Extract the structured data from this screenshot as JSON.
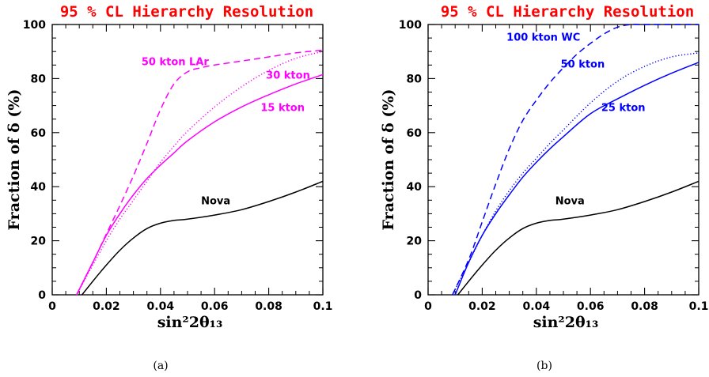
{
  "chart_data": [
    {
      "type": "line",
      "panel": "(a)",
      "title": "95 % CL Hierarchy Resolution",
      "title_color": "#ff0000",
      "xlabel": "sin²2θ₁₃",
      "ylabel": "Fraction of δ (%)",
      "xlim": [
        0,
        0.1
      ],
      "ylim": [
        0,
        100
      ],
      "xticks": [
        "0",
        "0.02",
        "0.04",
        "0.06",
        "0.08",
        "0.1"
      ],
      "yticks": [
        "0",
        "20",
        "40",
        "60",
        "80",
        "100"
      ],
      "series": [
        {
          "name": "Nova",
          "color": "#000000",
          "dash": "solid",
          "x": [
            0.011,
            0.015,
            0.02,
            0.025,
            0.03,
            0.035,
            0.04,
            0.045,
            0.05,
            0.06,
            0.07,
            0.08,
            0.09,
            0.1
          ],
          "y": [
            0,
            5,
            11,
            16.5,
            21,
            24.5,
            26.5,
            27.5,
            28,
            29.5,
            31.5,
            34.5,
            38,
            42
          ]
        },
        {
          "name": "15 kton",
          "color": "#ff00ff",
          "dash": "solid",
          "x": [
            0.009,
            0.015,
            0.02,
            0.025,
            0.03,
            0.035,
            0.04,
            0.045,
            0.05,
            0.06,
            0.07,
            0.08,
            0.09,
            0.1
          ],
          "y": [
            0,
            12,
            22,
            30,
            37,
            43,
            48,
            52.5,
            57,
            64,
            69.5,
            74,
            78,
            81.5
          ]
        },
        {
          "name": "30 kton",
          "color": "#ff00ff",
          "dash": "dotted",
          "x": [
            0.009,
            0.015,
            0.02,
            0.025,
            0.03,
            0.035,
            0.04,
            0.045,
            0.05,
            0.06,
            0.07,
            0.08,
            0.09,
            0.1
          ],
          "y": [
            0,
            11,
            20,
            28,
            35,
            42,
            49,
            55,
            60.5,
            69.5,
            77,
            83,
            87.5,
            90
          ]
        },
        {
          "name": "50 kton LAr",
          "color": "#ff00ff",
          "dash": "dashed",
          "x": [
            0.009,
            0.015,
            0.02,
            0.025,
            0.03,
            0.035,
            0.04,
            0.045,
            0.05,
            0.055,
            0.06,
            0.07,
            0.08,
            0.09,
            0.1
          ],
          "y": [
            0,
            12,
            22.5,
            33,
            44,
            56,
            68.5,
            78,
            82.5,
            84,
            85,
            86.5,
            88,
            89.5,
            90.5
          ]
        }
      ],
      "labels": [
        {
          "text": "50 kton LAr",
          "color": "#ff00ff",
          "x": 0.033,
          "y": 85
        },
        {
          "text": "30 kton",
          "color": "#ff00ff",
          "x": 0.079,
          "y": 80
        },
        {
          "text": "15 kton",
          "color": "#ff00ff",
          "x": 0.077,
          "y": 68
        },
        {
          "text": "Nova",
          "color": "#000000",
          "x": 0.055,
          "y": 33.5
        }
      ]
    },
    {
      "type": "line",
      "panel": "(b)",
      "title": "95 % CL Hierarchy Resolution",
      "title_color": "#ff0000",
      "xlabel": "sin²2θ₁₃",
      "ylabel": "Fraction of δ (%)",
      "xlim": [
        0,
        0.1
      ],
      "ylim": [
        0,
        100
      ],
      "xticks": [
        "0",
        "0.02",
        "0.04",
        "0.06",
        "0.08",
        "0.1"
      ],
      "yticks": [
        "0",
        "20",
        "40",
        "60",
        "80",
        "100"
      ],
      "series": [
        {
          "name": "Nova",
          "color": "#000000",
          "dash": "solid",
          "x": [
            0.011,
            0.015,
            0.02,
            0.025,
            0.03,
            0.035,
            0.04,
            0.045,
            0.05,
            0.06,
            0.07,
            0.08,
            0.09,
            0.1
          ],
          "y": [
            0,
            5,
            11,
            16.5,
            21,
            24.5,
            26.5,
            27.5,
            28,
            29.5,
            31.5,
            34.5,
            38,
            42
          ]
        },
        {
          "name": "25 kton",
          "color": "#0000ff",
          "dash": "solid",
          "x": [
            0.01,
            0.015,
            0.02,
            0.025,
            0.03,
            0.035,
            0.04,
            0.045,
            0.05,
            0.06,
            0.07,
            0.08,
            0.09,
            0.1
          ],
          "y": [
            0,
            12,
            22,
            30,
            37,
            43.5,
            49,
            54,
            58.5,
            67,
            72.5,
            77.5,
            82,
            86
          ]
        },
        {
          "name": "50 kton",
          "color": "#0000ff",
          "dash": "dotted",
          "x": [
            0.009,
            0.015,
            0.02,
            0.025,
            0.03,
            0.035,
            0.04,
            0.045,
            0.05,
            0.06,
            0.07,
            0.08,
            0.09,
            0.1
          ],
          "y": [
            0,
            12,
            22,
            31,
            38.5,
            45,
            50.5,
            56,
            61,
            71,
            79,
            84.5,
            88,
            89.5
          ]
        },
        {
          "name": "100 kton WC",
          "color": "#0000ff",
          "dash": "dashed",
          "x": [
            0.009,
            0.015,
            0.02,
            0.025,
            0.03,
            0.035,
            0.04,
            0.045,
            0.05,
            0.055,
            0.06,
            0.065,
            0.07,
            0.075,
            0.08,
            0.1
          ],
          "y": [
            0,
            13,
            27,
            41,
            54,
            64.5,
            72,
            78.5,
            84,
            89,
            93,
            96.5,
            99,
            100,
            100,
            100
          ]
        }
      ],
      "labels": [
        {
          "text": "100 kton WC",
          "color": "#0000ff",
          "x": 0.029,
          "y": 94
        },
        {
          "text": "50 kton",
          "color": "#0000ff",
          "x": 0.049,
          "y": 84
        },
        {
          "text": "25 kton",
          "color": "#0000ff",
          "x": 0.064,
          "y": 68
        },
        {
          "text": "Nova",
          "color": "#000000",
          "x": 0.047,
          "y": 33.5
        }
      ]
    }
  ]
}
